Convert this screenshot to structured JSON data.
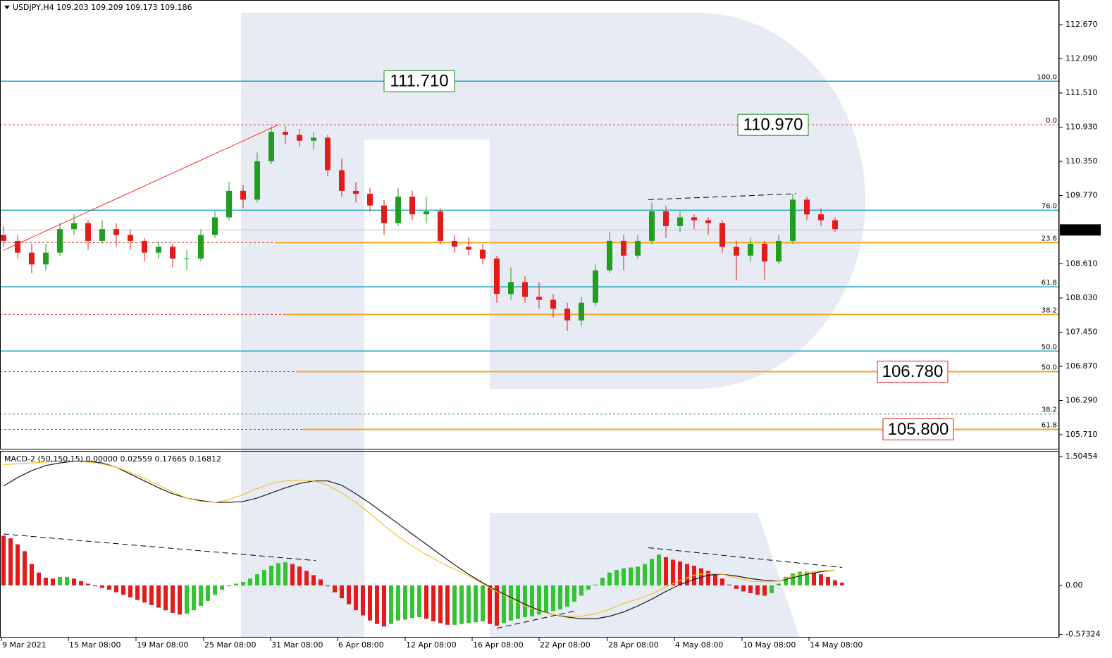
{
  "chart_data": [
    {
      "type": "candlestick",
      "title": "USDJPY,H4  109.203 109.209 109.173 109.186",
      "open": [
        109.1,
        109.0,
        108.8,
        108.6,
        108.8,
        109.2,
        109.3,
        109.0,
        109.2,
        109.1,
        109.0,
        108.8,
        108.9,
        108.7,
        108.7,
        109.1,
        109.4,
        109.85,
        109.7,
        110.35,
        110.85,
        110.8,
        110.7,
        110.75,
        110.2,
        109.85,
        109.8,
        109.6,
        109.3,
        109.75,
        109.45,
        109.5,
        109.0,
        108.9,
        108.85,
        108.7,
        108.1,
        108.3,
        108.05,
        108.0,
        107.85,
        107.65,
        107.95,
        108.5,
        109.0,
        108.75,
        109.0,
        109.5,
        109.25,
        109.4,
        109.35,
        109.3,
        108.9,
        108.75,
        108.95,
        108.65,
        109.0,
        109.7,
        109.45,
        109.35
      ],
      "high": [
        109.25,
        109.1,
        108.95,
        108.95,
        109.3,
        109.45,
        109.35,
        109.35,
        109.3,
        109.2,
        109.05,
        109.0,
        108.95,
        108.85,
        109.2,
        109.5,
        110.0,
        109.95,
        110.5,
        110.94,
        110.95,
        110.9,
        110.85,
        110.8,
        110.4,
        110.0,
        109.9,
        109.7,
        109.9,
        109.85,
        109.75,
        109.55,
        109.1,
        109.05,
        108.95,
        108.75,
        108.55,
        108.4,
        108.3,
        108.1,
        107.95,
        108.05,
        108.6,
        109.15,
        109.1,
        109.1,
        109.65,
        109.6,
        109.5,
        109.45,
        109.4,
        109.35,
        109.0,
        109.05,
        109.0,
        109.1,
        109.8,
        109.75,
        109.55,
        109.4
      ],
      "low": [
        108.9,
        108.7,
        108.45,
        108.5,
        108.75,
        109.1,
        108.85,
        108.95,
        108.9,
        108.85,
        108.65,
        108.7,
        108.55,
        108.5,
        108.65,
        109.05,
        109.35,
        109.55,
        109.65,
        110.3,
        110.65,
        110.6,
        110.55,
        110.1,
        109.75,
        109.65,
        109.5,
        109.1,
        109.25,
        109.35,
        109.3,
        108.95,
        108.8,
        108.75,
        108.6,
        107.95,
        108.0,
        107.95,
        107.85,
        107.7,
        107.47,
        107.55,
        107.9,
        108.45,
        108.5,
        108.7,
        108.95,
        109.05,
        109.15,
        109.2,
        109.1,
        108.8,
        108.33,
        108.65,
        108.34,
        108.6,
        108.95,
        109.35,
        109.25,
        109.15
      ],
      "close": [
        109.0,
        108.8,
        108.6,
        108.8,
        109.2,
        109.3,
        109.0,
        109.2,
        109.1,
        109.0,
        108.8,
        108.9,
        108.7,
        108.7,
        109.1,
        109.4,
        109.85,
        109.7,
        110.35,
        110.85,
        110.8,
        110.7,
        110.75,
        110.2,
        109.85,
        109.8,
        109.6,
        109.3,
        109.75,
        109.45,
        109.5,
        109.0,
        108.9,
        108.85,
        108.7,
        108.1,
        108.3,
        108.05,
        108.0,
        107.85,
        107.65,
        107.95,
        108.5,
        109.0,
        108.75,
        109.0,
        109.5,
        109.25,
        109.4,
        109.35,
        109.3,
        108.9,
        108.75,
        108.95,
        108.65,
        109.0,
        109.7,
        109.45,
        109.35,
        109.2
      ],
      "up_color": "#1f9e1f",
      "down_color": "#e31b1b",
      "ylim": [
        105.459,
        113.089
      ],
      "yticks": [
        {
          "value": 112.67,
          "label": "112.670"
        },
        {
          "value": 112.09,
          "label": "112.090"
        },
        {
          "value": 111.51,
          "label": "111.510"
        },
        {
          "value": 110.93,
          "label": "110.930"
        },
        {
          "value": 110.35,
          "label": "110.350"
        },
        {
          "value": 109.77,
          "label": "109.770"
        },
        {
          "value": 108.61,
          "label": "108.610"
        },
        {
          "value": 108.03,
          "label": "108.030"
        },
        {
          "value": 107.45,
          "label": "107.450"
        },
        {
          "value": 106.87,
          "label": "106.870"
        },
        {
          "value": 106.29,
          "label": "106.290"
        },
        {
          "value": 105.71,
          "label": "105.710"
        }
      ],
      "xlim": [
        -0.25,
        74.9
      ],
      "xticks": [
        {
          "value": -0.15,
          "label": "9 Mar 2021"
        },
        {
          "value": 4.6,
          "label": "15 Mar 08:00"
        },
        {
          "value": 9.4,
          "label": "19 Mar 08:00"
        },
        {
          "value": 14.2,
          "label": "25 Mar 08:00"
        },
        {
          "value": 18.95,
          "label": "31 Mar 08:00"
        },
        {
          "value": 23.7,
          "label": "6 Apr 08:00"
        },
        {
          "value": 28.5,
          "label": "12 Apr 08:00"
        },
        {
          "value": 33.25,
          "label": "16 Apr 08:00"
        },
        {
          "value": 38,
          "label": "22 Apr 08:00"
        },
        {
          "value": 42.85,
          "label": "28 Apr 08:00"
        },
        {
          "value": 47.6,
          "label": "4 May 08:00"
        },
        {
          "value": 52.4,
          "label": "10 May 08:00"
        },
        {
          "value": 57.15,
          "label": "14 May 08:00"
        }
      ],
      "last_price": 109.186,
      "levels": [
        {
          "value": 111.71,
          "label": "100.0",
          "color": "#1ea5c4",
          "dash": false,
          "text_color": "#2e9a2e",
          "value_label": "111.710",
          "box_color": "#1e8a1e"
        },
        {
          "value": 110.97,
          "label": "0.0",
          "color": "#e03030",
          "dash": true,
          "text_color": "#e03030",
          "value_label": "110.970",
          "box_color": "#1e8a1e"
        },
        {
          "value": 109.52,
          "label": "76.0",
          "color": "#1ea5c4",
          "dash": false,
          "text_color": "#2e9a2e"
        },
        {
          "value": 108.97,
          "label": "23.6",
          "color": "#e03030",
          "dash": true,
          "text_color": "#e03030",
          "from": 19.25,
          "ext_color": "#f5a623"
        },
        {
          "value": 108.22,
          "label": "61.8",
          "color": "#1ea5c4",
          "dash": false,
          "text_color": "#2e9a2e"
        },
        {
          "value": 107.75,
          "label": "38.2",
          "color": "#e03030",
          "dash": true,
          "text_color": "#e03030",
          "from": 20,
          "ext_color": "#f5a623"
        },
        {
          "value": 107.13,
          "label": "50.0",
          "color": "#1ea5c4",
          "dash": false,
          "text_color": "#2e9a2e"
        },
        {
          "value": 106.78,
          "label": "50.0",
          "color": "#e03030",
          "dash": true,
          "text_color": "#e03030",
          "from": 20.75,
          "ext_color": "#f5a623",
          "value_label": "106.780",
          "box_color": "#e31b1b"
        },
        {
          "value": 106.06,
          "label": "38.2",
          "color": "#2e9a2e",
          "dash": true,
          "text_color": "#2e9a2e"
        },
        {
          "value": 105.8,
          "label": "61.8",
          "color": "#e03030",
          "dash": true,
          "text_color": "#e03030",
          "from": 21.25,
          "ext_color": "#f5a623",
          "value_label": "105.800",
          "box_color": "#e31b1b"
        }
      ],
      "trendlines": [
        {
          "x": [
            0,
            19.5
          ],
          "y": [
            108.84,
            110.97
          ],
          "color": "#ff2020",
          "dash": false
        },
        {
          "x": [
            45.75,
            56.25
          ],
          "y": [
            109.7,
            109.8
          ],
          "color": "#000000",
          "dash": true
        }
      ]
    },
    {
      "type": "macd",
      "title": "MACD-2 (50,150,15) 0.00000 0.02559 0.17665 0.16812",
      "ylim": [
        -0.609,
        1.571
      ],
      "yticks": [
        1.50454,
        {
          "value": 0,
          "label": "0.00"
        },
        -0.57324
      ],
      "histogram": {
        "up_color": "#33c433",
        "down_color": "#e31b1b",
        "values": [
          0.58,
          0.55,
          0.48,
          0.4,
          0.25,
          0.15,
          0.09,
          0.08,
          0.1,
          0.1,
          0.08,
          0.05,
          0.02,
          -0.01,
          -0.03,
          -0.05,
          -0.08,
          -0.11,
          -0.14,
          -0.17,
          -0.2,
          -0.23,
          -0.26,
          -0.29,
          -0.32,
          -0.34,
          -0.33,
          -0.29,
          -0.24,
          -0.18,
          -0.11,
          -0.05,
          -0.01,
          0.02,
          0.04,
          0.08,
          0.13,
          0.18,
          0.23,
          0.26,
          0.27,
          0.25,
          0.22,
          0.17,
          0.12,
          0.07,
          -0.01,
          -0.08,
          -0.15,
          -0.22,
          -0.29,
          -0.35,
          -0.41,
          -0.45,
          -0.48,
          -0.45,
          -0.41,
          -0.4,
          -0.38,
          -0.37,
          -0.39,
          -0.42,
          -0.44,
          -0.46,
          -0.46,
          -0.45,
          -0.44,
          -0.43,
          -0.42,
          -0.45,
          -0.47,
          -0.44,
          -0.41,
          -0.39,
          -0.37,
          -0.36,
          -0.34,
          -0.32,
          -0.3,
          -0.28,
          -0.25,
          -0.19,
          -0.12,
          -0.05,
          0.01,
          0.09,
          0.15,
          0.18,
          0.2,
          0.21,
          0.22,
          0.25,
          0.31,
          0.36,
          0.33,
          0.3,
          0.28,
          0.25,
          0.23,
          0.2,
          0.17,
          0.13,
          0.08,
          0.01,
          -0.04,
          -0.07,
          -0.09,
          -0.11,
          -0.12,
          -0.09,
          0.02,
          0.1,
          0.14,
          0.16,
          0.16,
          0.15,
          0.13,
          0.1,
          0.06,
          0.03
        ]
      },
      "lines": [
        {
          "color": "#1a1a1a",
          "values": [
            1.16,
            1.26,
            1.34,
            1.4,
            1.43,
            1.45,
            1.45,
            1.43,
            1.38,
            1.3,
            1.22,
            1.14,
            1.07,
            1.02,
            0.99,
            0.97,
            0.97,
            0.98,
            1.02,
            1.08,
            1.14,
            1.19,
            1.22,
            1.22,
            1.17,
            1.07,
            0.96,
            0.84,
            0.72,
            0.6,
            0.48,
            0.36,
            0.24,
            0.13,
            0.03,
            -0.06,
            -0.14,
            -0.22,
            -0.29,
            -0.34,
            -0.37,
            -0.39,
            -0.39,
            -0.36,
            -0.31,
            -0.24,
            -0.16,
            -0.07,
            0.01,
            0.07,
            0.12,
            0.13,
            0.11,
            0.08,
            0.06,
            0.05,
            0.09,
            0.13,
            0.16,
            0.18
          ]
        },
        {
          "color": "#f2c12e",
          "values": [
            1.41,
            1.42,
            1.43,
            1.44,
            1.45,
            1.45,
            1.44,
            1.42,
            1.38,
            1.32,
            1.25,
            1.17,
            1.09,
            1.02,
            0.98,
            0.97,
            1.0,
            1.06,
            1.13,
            1.19,
            1.22,
            1.23,
            1.22,
            1.17,
            1.08,
            0.97,
            0.84,
            0.7,
            0.57,
            0.46,
            0.36,
            0.27,
            0.19,
            0.11,
            0.02,
            -0.07,
            -0.16,
            -0.24,
            -0.3,
            -0.34,
            -0.36,
            -0.36,
            -0.33,
            -0.28,
            -0.21,
            -0.16,
            -0.1,
            -0.02,
            0.06,
            0.12,
            0.14,
            0.13,
            0.09,
            0.05,
            0.04,
            0.05,
            0.11,
            0.15,
            0.17,
            0.18
          ]
        }
      ],
      "trendlines": [
        {
          "x": [
            0,
            22.15
          ],
          "y": [
            0.6,
            0.29
          ],
          "color": "#000000",
          "dash": true
        },
        {
          "x": [
            35,
            40.5
          ],
          "y": [
            -0.5,
            -0.3
          ],
          "color": "#000000",
          "dash": true
        },
        {
          "x": [
            45.75,
            59.5
          ],
          "y": [
            0.44,
            0.21
          ],
          "color": "#000000",
          "dash": true
        }
      ]
    }
  ]
}
